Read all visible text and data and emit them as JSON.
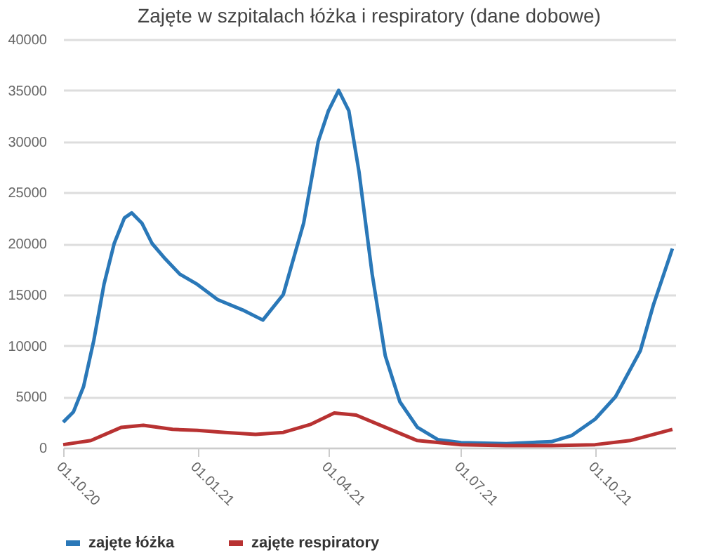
{
  "chart_data": {
    "type": "line",
    "title": "Zajęte w szpitalach łóżka i respiratory (dane dobowe)",
    "xlim": [
      "2020-10-01",
      "2021-11-25"
    ],
    "xticks": [
      {
        "value": "2020-10-01",
        "label": "01.10.20"
      },
      {
        "value": "2021-01-01",
        "label": "01.01.21"
      },
      {
        "value": "2021-04-01",
        "label": "01.04.21"
      },
      {
        "value": "2021-07-01",
        "label": "01.07.21"
      },
      {
        "value": "2021-10-01",
        "label": "01.10.21"
      }
    ],
    "ylim": [
      0,
      40000
    ],
    "yticks": [
      0,
      5000,
      10000,
      15000,
      20000,
      25000,
      30000,
      35000,
      40000
    ],
    "grid": "y",
    "legend": "bottom",
    "marker": "none",
    "line_style": "solid",
    "series": [
      {
        "name": "zajęte łóżka",
        "color": "#2a78b8",
        "x": [
          "2020-10-01",
          "2020-10-08",
          "2020-10-15",
          "2020-10-22",
          "2020-10-29",
          "2020-11-05",
          "2020-11-12",
          "2020-11-17",
          "2020-11-24",
          "2020-12-01",
          "2020-12-10",
          "2020-12-20",
          "2021-01-01",
          "2021-01-15",
          "2021-02-01",
          "2021-02-15",
          "2021-03-01",
          "2021-03-15",
          "2021-03-25",
          "2021-04-01",
          "2021-04-08",
          "2021-04-15",
          "2021-04-22",
          "2021-05-01",
          "2021-05-10",
          "2021-05-20",
          "2021-06-01",
          "2021-06-15",
          "2021-07-01",
          "2021-08-01",
          "2021-09-01",
          "2021-09-15",
          "2021-10-01",
          "2021-10-15",
          "2021-11-01",
          "2021-11-10",
          "2021-11-23"
        ],
        "values": [
          2500,
          3500,
          6000,
          10500,
          16000,
          20000,
          22500,
          23000,
          22000,
          20000,
          18500,
          17000,
          16000,
          14500,
          13500,
          12500,
          15000,
          22000,
          30000,
          33000,
          35000,
          33000,
          27000,
          17000,
          9000,
          4500,
          2000,
          800,
          500,
          400,
          600,
          1200,
          2800,
          5000,
          9500,
          14000,
          19500
        ]
      },
      {
        "name": "zajęte respiratory",
        "color": "#b83232",
        "x": [
          "2020-10-01",
          "2020-10-20",
          "2020-11-10",
          "2020-11-25",
          "2020-12-15",
          "2021-01-01",
          "2021-01-20",
          "2021-02-10",
          "2021-03-01",
          "2021-03-20",
          "2021-04-05",
          "2021-04-20",
          "2021-05-10",
          "2021-06-01",
          "2021-07-01",
          "2021-08-01",
          "2021-09-01",
          "2021-10-01",
          "2021-10-25",
          "2021-11-23"
        ],
        "values": [
          300,
          700,
          2000,
          2200,
          1800,
          1700,
          1500,
          1300,
          1500,
          2300,
          3400,
          3200,
          2000,
          700,
          300,
          200,
          200,
          300,
          700,
          1800
        ]
      }
    ]
  }
}
